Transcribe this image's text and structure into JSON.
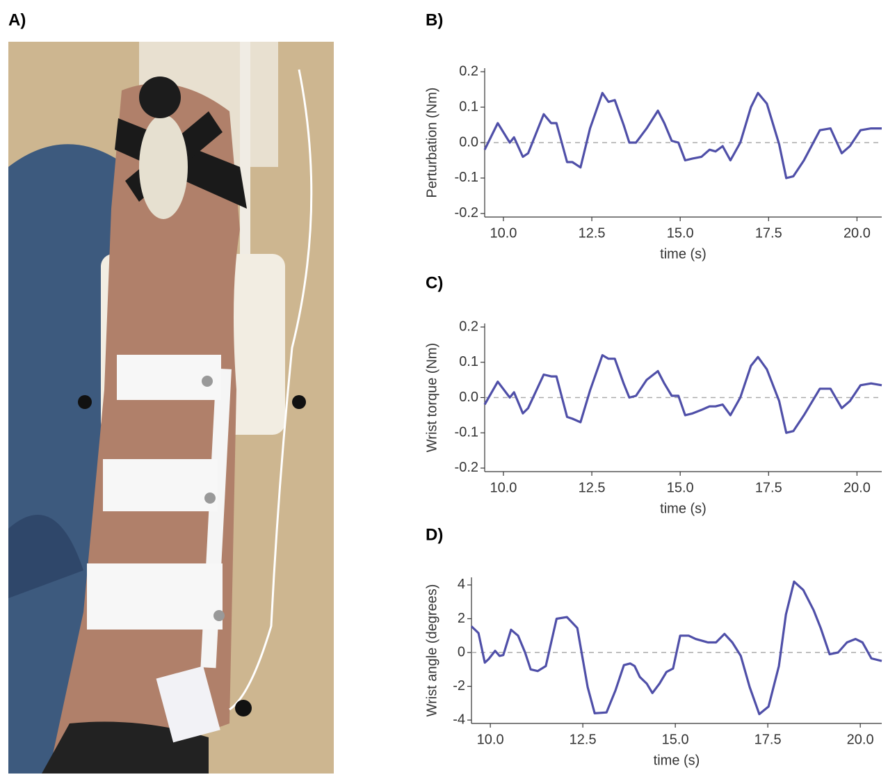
{
  "photo": {
    "panel": "A)"
  },
  "chart_data": [
    {
      "type": "line",
      "panel": "B)",
      "x_label": "time (s)",
      "y_label": "Perturbation (Nm)",
      "xlim": [
        9.47,
        20.7
      ],
      "ylim": [
        -0.21,
        0.21
      ],
      "xticks": [
        {
          "value": 10,
          "label": "10.0"
        },
        12.5,
        {
          "value": 15,
          "label": "15.0"
        },
        17.5,
        {
          "value": 20,
          "label": "20.0"
        }
      ],
      "yticks": [
        -0.2,
        -0.1,
        {
          "value": 0,
          "label": "0.0"
        },
        0.1,
        0.2
      ],
      "reference_line": 0,
      "grid": false,
      "x": [
        9.47,
        9.84,
        10.18,
        10.3,
        10.55,
        10.7,
        11.14,
        11.35,
        11.5,
        11.8,
        11.95,
        12.18,
        12.45,
        12.8,
        12.97,
        13.15,
        13.4,
        13.56,
        13.75,
        14.05,
        14.37,
        14.55,
        14.76,
        14.95,
        15.14,
        15.35,
        15.6,
        15.83,
        16.0,
        16.2,
        16.42,
        16.7,
        17.0,
        17.2,
        17.45,
        17.8,
        18.0,
        18.2,
        18.5,
        18.95,
        19.25,
        19.57,
        19.8,
        20.1,
        20.4,
        20.7
      ],
      "series": [
        {
          "color": "#4f4fa8",
          "values": [
            -0.02,
            0.055,
            0.0,
            0.015,
            -0.04,
            -0.03,
            0.08,
            0.055,
            0.055,
            -0.055,
            -0.055,
            -0.07,
            0.04,
            0.14,
            0.115,
            0.12,
            0.05,
            0.0,
            0.0,
            0.04,
            0.09,
            0.055,
            0.005,
            0.0,
            -0.05,
            -0.045,
            -0.04,
            -0.02,
            -0.025,
            -0.01,
            -0.05,
            0.0,
            0.1,
            0.14,
            0.11,
            -0.005,
            -0.1,
            -0.095,
            -0.05,
            0.035,
            0.04,
            -0.03,
            -0.01,
            0.035,
            0.04,
            0.04
          ]
        }
      ]
    },
    {
      "type": "line",
      "panel": "C)",
      "x_label": "time (s)",
      "y_label": "Wrist torque (Nm)",
      "xlim": [
        9.47,
        20.7
      ],
      "ylim": [
        -0.21,
        0.21
      ],
      "xticks": [
        {
          "value": 10,
          "label": "10.0"
        },
        12.5,
        {
          "value": 15,
          "label": "15.0"
        },
        17.5,
        {
          "value": 20,
          "label": "20.0"
        }
      ],
      "yticks": [
        -0.2,
        -0.1,
        {
          "value": 0,
          "label": "0.0"
        },
        0.1,
        0.2
      ],
      "reference_line": 0,
      "grid": false,
      "x": [
        9.47,
        9.84,
        10.18,
        10.3,
        10.55,
        10.7,
        11.14,
        11.35,
        11.5,
        11.8,
        11.95,
        12.18,
        12.45,
        12.8,
        12.97,
        13.15,
        13.4,
        13.56,
        13.75,
        14.05,
        14.37,
        14.55,
        14.76,
        14.95,
        15.14,
        15.35,
        15.6,
        15.83,
        16.0,
        16.2,
        16.42,
        16.7,
        17.0,
        17.2,
        17.45,
        17.8,
        18.0,
        18.2,
        18.5,
        18.95,
        19.25,
        19.57,
        19.8,
        20.1,
        20.4,
        20.7
      ],
      "series": [
        {
          "color": "#4f4fa8",
          "values": [
            -0.02,
            0.045,
            0.0,
            0.015,
            -0.045,
            -0.03,
            0.065,
            0.06,
            0.06,
            -0.055,
            -0.06,
            -0.07,
            0.02,
            0.12,
            0.11,
            0.11,
            0.04,
            0.0,
            0.005,
            0.05,
            0.075,
            0.04,
            0.005,
            0.005,
            -0.05,
            -0.045,
            -0.035,
            -0.025,
            -0.025,
            -0.02,
            -0.05,
            0.0,
            0.09,
            0.115,
            0.08,
            -0.01,
            -0.1,
            -0.095,
            -0.05,
            0.025,
            0.025,
            -0.03,
            -0.01,
            0.035,
            0.04,
            0.035
          ]
        }
      ]
    },
    {
      "type": "line",
      "panel": "D)",
      "x_label": "time (s)",
      "y_label": "Wrist angle (degrees)",
      "xlim": [
        9.49,
        20.58
      ],
      "ylim": [
        -4.2,
        4.45
      ],
      "xticks": [
        {
          "value": 10,
          "label": "10.0"
        },
        12.5,
        {
          "value": 15,
          "label": "15.0"
        },
        17.5,
        {
          "value": 20,
          "label": "20.0"
        }
      ],
      "yticks": [
        -4,
        -2,
        0,
        2,
        4
      ],
      "reference_line": 0,
      "grid": false,
      "x": [
        9.49,
        9.68,
        9.85,
        9.95,
        10.13,
        10.25,
        10.35,
        10.56,
        10.75,
        10.94,
        11.09,
        11.28,
        11.5,
        11.79,
        12.07,
        12.35,
        12.63,
        12.82,
        13.14,
        13.38,
        13.61,
        13.78,
        13.9,
        14.04,
        14.23,
        14.38,
        14.57,
        14.76,
        14.94,
        15.13,
        15.36,
        15.55,
        15.88,
        16.1,
        16.33,
        16.54,
        16.77,
        17.01,
        17.27,
        17.52,
        17.8,
        17.99,
        18.21,
        18.46,
        18.74,
        18.93,
        19.17,
        19.4,
        19.64,
        19.87,
        20.06,
        20.3,
        20.58
      ],
      "series": [
        {
          "color": "#4f4fa8",
          "values": [
            1.55,
            1.15,
            -0.6,
            -0.4,
            0.1,
            -0.2,
            -0.15,
            1.35,
            1.0,
            0,
            -1.0,
            -1.1,
            -0.8,
            2.0,
            2.1,
            1.45,
            -2.05,
            -3.6,
            -3.55,
            -2.25,
            -0.75,
            -0.65,
            -0.8,
            -1.45,
            -1.85,
            -2.4,
            -1.85,
            -1.15,
            -0.95,
            1.0,
            1.0,
            0.8,
            0.6,
            0.6,
            1.1,
            0.6,
            -0.2,
            -2.05,
            -3.65,
            -3.2,
            -0.8,
            2.25,
            4.2,
            3.7,
            2.5,
            1.45,
            -0.1,
            0,
            0.6,
            0.8,
            0.6,
            -0.35,
            -0.5
          ]
        }
      ]
    }
  ]
}
